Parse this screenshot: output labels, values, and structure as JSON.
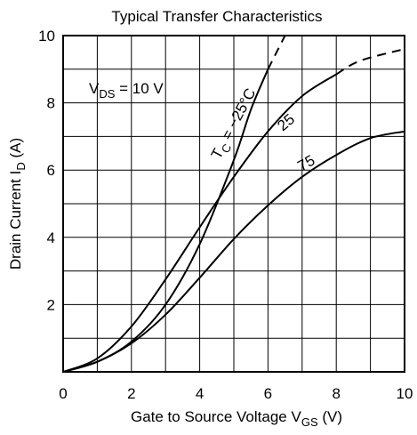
{
  "chart_data": {
    "type": "line",
    "title": "Typical Transfer Characteristics",
    "xlabel": {
      "main": "Gate to Source Voltage  V",
      "sub": "GS",
      "unit": "  (V)"
    },
    "ylabel": {
      "main": "Drain Current  I",
      "sub": "D",
      "unit": "  (A)"
    },
    "xlim": [
      0,
      10
    ],
    "ylim": [
      0,
      10
    ],
    "x_ticks": [
      0,
      2,
      4,
      6,
      8,
      10
    ],
    "y_ticks": [
      2,
      4,
      6,
      8,
      10
    ],
    "grid": true,
    "condition": {
      "main": "V",
      "sub": "DS",
      "rest": " = 10 V"
    },
    "series": [
      {
        "name": "-25",
        "solid": [
          [
            0,
            0
          ],
          [
            1,
            0.3
          ],
          [
            2,
            0.9
          ],
          [
            3,
            2.0
          ],
          [
            4,
            3.8
          ],
          [
            5,
            6.3
          ],
          [
            5.5,
            7.8
          ],
          [
            6,
            9.0
          ]
        ],
        "dashed": [
          [
            6,
            9.0
          ],
          [
            6.3,
            9.6
          ],
          [
            6.8,
            10.6
          ]
        ]
      },
      {
        "name": "25",
        "solid": [
          [
            0,
            0
          ],
          [
            1,
            0.4
          ],
          [
            2,
            1.35
          ],
          [
            3,
            2.75
          ],
          [
            4,
            4.3
          ],
          [
            5,
            5.8
          ],
          [
            6,
            7.15
          ],
          [
            7,
            8.2
          ],
          [
            8,
            8.85
          ]
        ],
        "dashed": [
          [
            8,
            8.85
          ],
          [
            8.7,
            9.25
          ],
          [
            10,
            9.6
          ]
        ]
      },
      {
        "name": "75",
        "solid": [
          [
            0,
            0
          ],
          [
            1,
            0.3
          ],
          [
            2,
            0.85
          ],
          [
            3,
            1.7
          ],
          [
            4,
            2.8
          ],
          [
            5,
            3.95
          ],
          [
            6,
            4.95
          ],
          [
            7,
            5.8
          ],
          [
            8,
            6.45
          ],
          [
            9,
            6.95
          ],
          [
            10,
            7.15
          ]
        ]
      }
    ],
    "annotations": {
      "tc_main": "T",
      "tc_sub": "C",
      "tc_rest": " = −25°C",
      "label_25": "25",
      "label_75": "75"
    }
  }
}
